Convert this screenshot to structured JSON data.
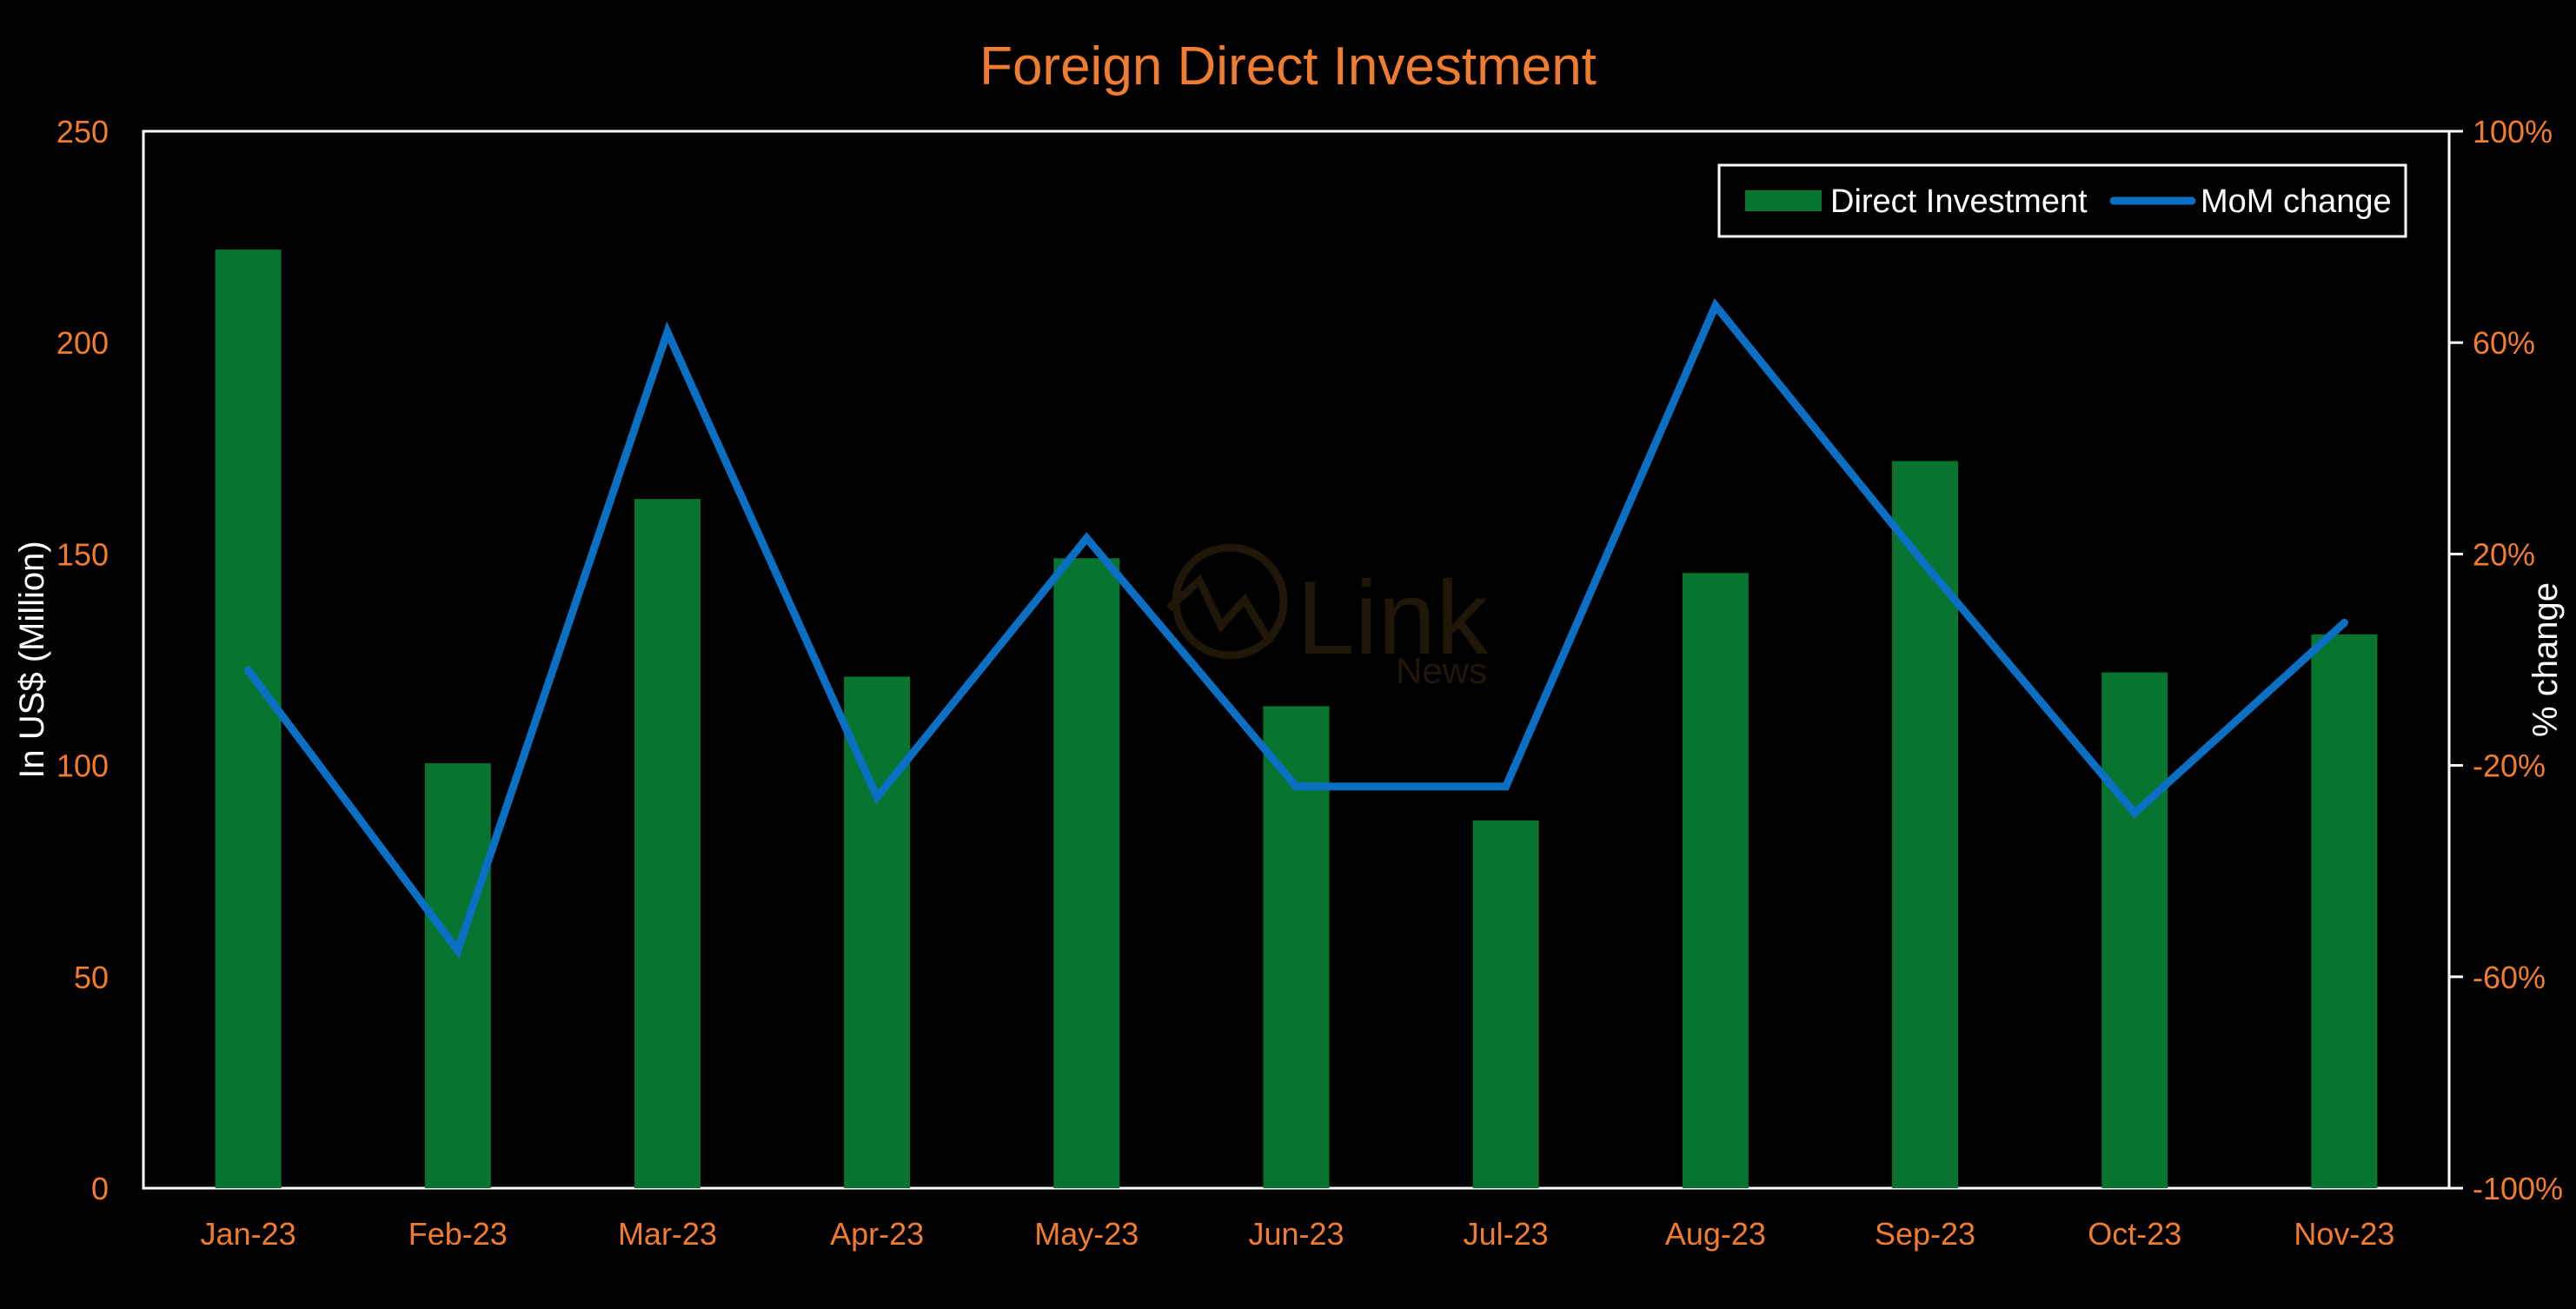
{
  "chart_data": {
    "type": "bar",
    "title": "Foreign Direct Investment",
    "categories": [
      "Jan-23",
      "Feb-23",
      "Mar-23",
      "Apr-23",
      "May-23",
      "Jun-23",
      "Jul-23",
      "Aug-23",
      "Sep-23",
      "Oct-23",
      "Nov-23"
    ],
    "series": [
      {
        "name": "Direct Investment",
        "type": "bar",
        "axis": "left",
        "color": "#077530",
        "values": [
          222,
          100.5,
          163,
          121,
          149,
          114,
          87,
          145.5,
          172,
          122,
          131
        ]
      },
      {
        "name": "MoM change",
        "type": "line",
        "axis": "right",
        "color": "#0B6FC4",
        "values": [
          -2,
          -55,
          62,
          -26,
          23,
          -24,
          -24,
          67,
          18,
          -29,
          7
        ]
      }
    ],
    "ylabel_left": "In US$ (Million)",
    "ylabel_right": "% change",
    "ylim_left": [
      0,
      250
    ],
    "yticks_left": [
      "0",
      "50",
      "100",
      "150",
      "200",
      "250"
    ],
    "ylim_right": [
      -100,
      100
    ],
    "yticks_right": [
      "-100%",
      "-60%",
      "-20%",
      "20%",
      "60%",
      "100%"
    ],
    "grid": false,
    "legend_position": "top-right",
    "watermark": "Link News",
    "colors": {
      "background": "#000000",
      "title": "#F07C30",
      "tick_text": "#F07C30",
      "right_tick_text": "#FFFFFF",
      "axis_label": "#FFFFFF",
      "frame": "#FFFFFF",
      "bar": "#077530",
      "line": "#0B6FC4"
    }
  }
}
